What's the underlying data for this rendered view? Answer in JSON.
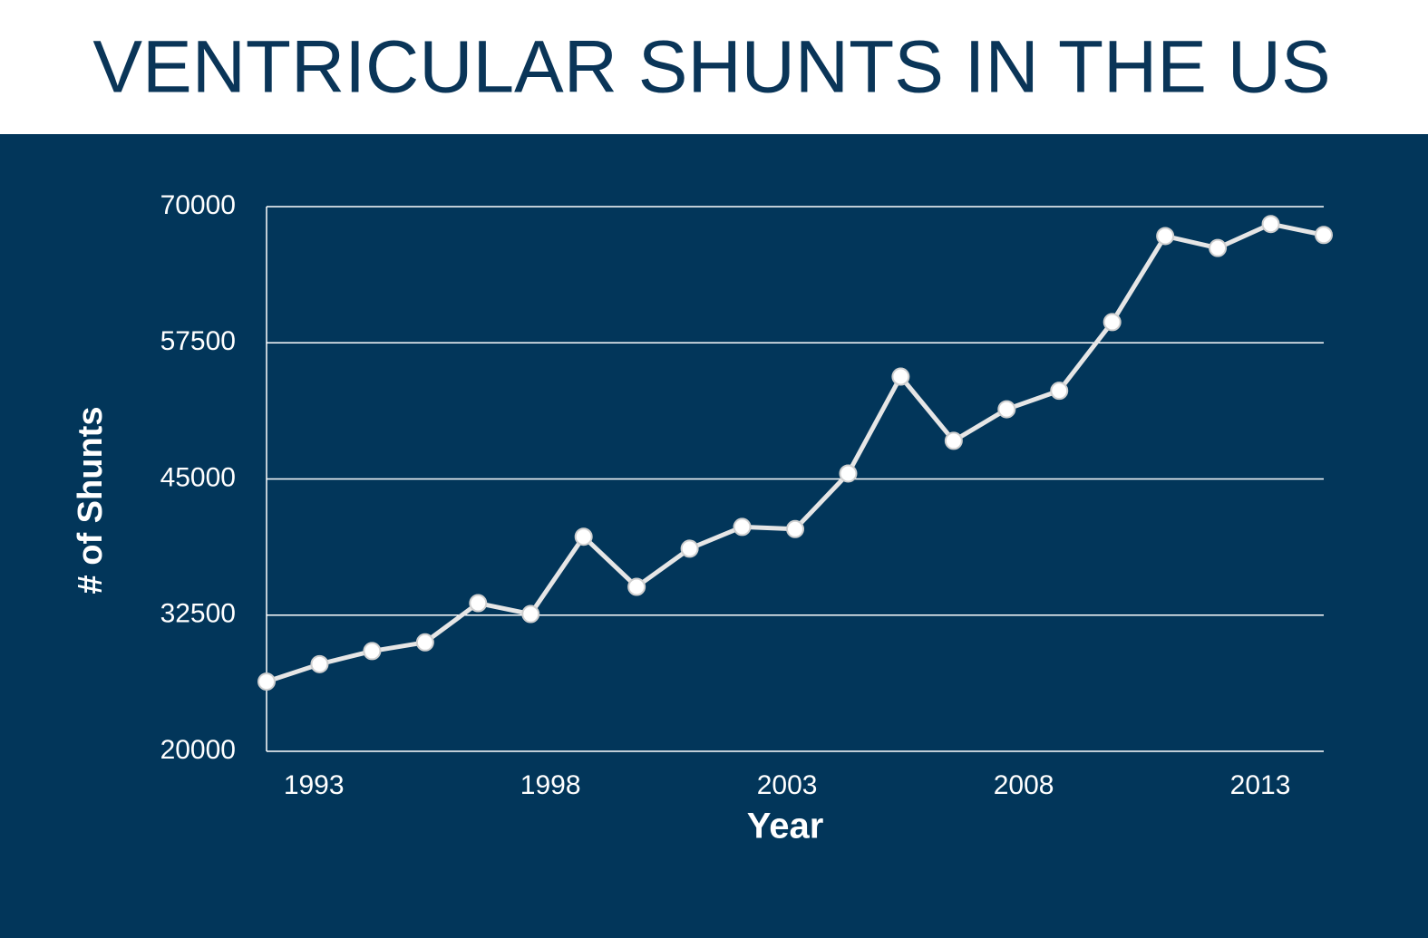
{
  "chart_data": {
    "type": "line",
    "title": "VENTRICULAR SHUNTS IN THE US",
    "x_label": "Year",
    "y_label": "# of Shunts",
    "x": [
      1992,
      1993.12,
      1994.23,
      1995.35,
      1996.47,
      1997.58,
      1998.7,
      1999.82,
      2000.94,
      2002.05,
      2003.17,
      2004.29,
      2005.4,
      2006.52,
      2007.64,
      2008.75,
      2009.87,
      2010.99,
      2012.1,
      2013.22,
      2014.34
    ],
    "series": [
      {
        "name": "Shunts",
        "color": "#e6e6e6",
        "values": [
          26400,
          28000,
          29200,
          30000,
          33600,
          32600,
          39700,
          35100,
          38600,
          40600,
          40400,
          45500,
          54400,
          48500,
          51400,
          53100,
          59400,
          67300,
          66200,
          68400,
          67400
        ]
      }
    ],
    "xlim": [
      1992,
      2014.34
    ],
    "xticks": [
      1993,
      1998,
      2003,
      2008,
      2013
    ],
    "ylim": [
      20000,
      70000
    ],
    "yticks": [
      20000,
      32500,
      45000,
      57500,
      70000
    ],
    "grid": true
  }
}
